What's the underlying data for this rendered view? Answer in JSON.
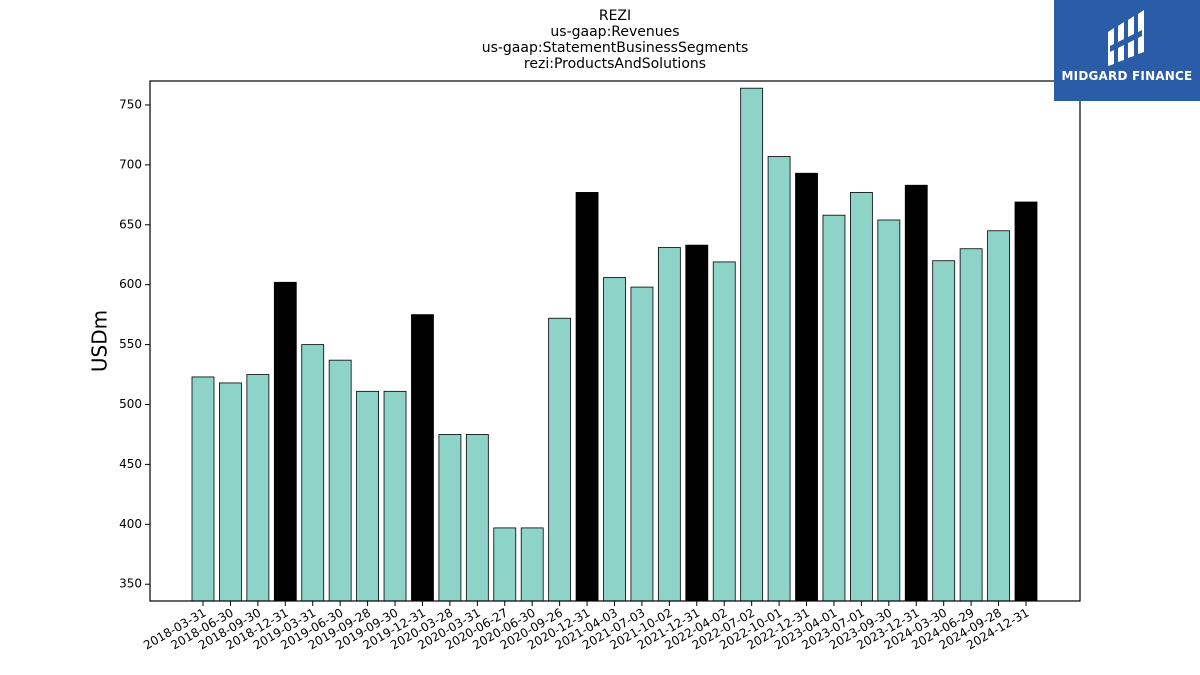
{
  "chart_data": {
    "type": "bar",
    "title_lines": [
      "REZI",
      "us-gaap:Revenues",
      "us-gaap:StatementBusinessSegments",
      "rezi:ProductsAndSolutions"
    ],
    "xlabel": "",
    "ylabel": "USDm",
    "ylim": [
      336,
      770
    ],
    "yticks": [
      350,
      400,
      450,
      500,
      550,
      600,
      650,
      700,
      750
    ],
    "categories": [
      "2018-03-31",
      "2018-06-30",
      "2018-09-30",
      "2018-12-31",
      "2019-03-31",
      "2019-06-30",
      "2019-09-28",
      "2019-09-30",
      "2019-12-31",
      "2020-03-28",
      "2020-03-31",
      "2020-06-27",
      "2020-06-30",
      "2020-09-26",
      "2020-12-31",
      "2021-04-03",
      "2021-07-03",
      "2021-10-02",
      "2021-12-31",
      "2022-04-02",
      "2022-07-02",
      "2022-10-01",
      "2022-12-31",
      "2023-04-01",
      "2023-07-01",
      "2023-09-30",
      "2023-12-31",
      "2024-03-30",
      "2024-06-29",
      "2024-09-28",
      "2024-12-31"
    ],
    "values": [
      523,
      518,
      525,
      602,
      550,
      537,
      511,
      511,
      575,
      475,
      475,
      397,
      397,
      572,
      677,
      606,
      598,
      631,
      633,
      619,
      764,
      707,
      693,
      658,
      677,
      654,
      683,
      620,
      630,
      645,
      669
    ],
    "annual": [
      false,
      false,
      false,
      true,
      false,
      false,
      false,
      false,
      true,
      false,
      false,
      false,
      false,
      false,
      true,
      false,
      false,
      false,
      true,
      false,
      false,
      false,
      true,
      false,
      false,
      false,
      true,
      false,
      false,
      false,
      true
    ],
    "colors": {
      "quarter": "#8dd3c7",
      "annual": "#000000",
      "edge": "#000000"
    },
    "grid": false,
    "legend": "none"
  },
  "logo": {
    "text": "MIDGARD FINANCE",
    "background": "#2a5ca8"
  }
}
